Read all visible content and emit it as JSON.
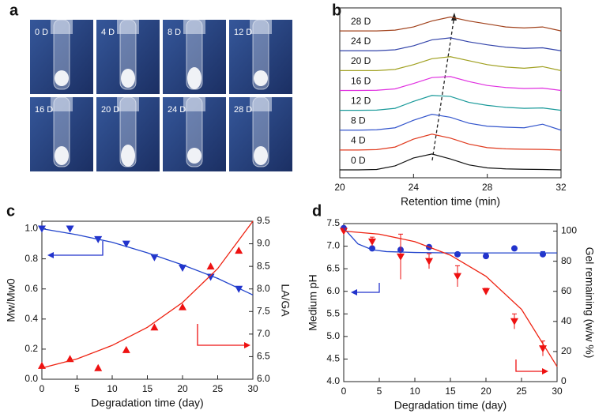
{
  "photos": {
    "label": "a",
    "tiles": [
      "0 D",
      "4 D",
      "8 D",
      "12 D",
      "16 D",
      "20 D",
      "24 D",
      "28 D"
    ]
  },
  "chart_data": [
    {
      "label": "b",
      "type": "line",
      "xlabel": "Retention time (min)",
      "xlim": [
        20,
        32
      ],
      "xticks": [
        20,
        24,
        28,
        32
      ],
      "x": [
        20,
        21,
        22,
        23,
        24,
        25,
        26,
        27,
        28,
        29,
        30,
        31,
        32
      ],
      "series": [
        {
          "name": "0 D",
          "color": "#111111",
          "values": [
            0,
            0,
            0.02,
            0.2,
            0.6,
            0.8,
            0.55,
            0.25,
            0.1,
            0.05,
            0.03,
            0.02,
            0
          ]
        },
        {
          "name": "4 D",
          "color": "#e03a1e",
          "values": [
            0,
            0,
            0.02,
            0.15,
            0.55,
            0.8,
            0.6,
            0.3,
            0.12,
            0.06,
            0.04,
            0.03,
            0
          ]
        },
        {
          "name": "8 D",
          "color": "#3355cc",
          "values": [
            0,
            0,
            0.02,
            0.12,
            0.5,
            0.8,
            0.65,
            0.35,
            0.2,
            0.15,
            0.12,
            0.3,
            0
          ]
        },
        {
          "name": "12 D",
          "color": "#1a9a9a",
          "values": [
            0,
            0,
            0.01,
            0.1,
            0.45,
            0.75,
            0.7,
            0.4,
            0.25,
            0.15,
            0.1,
            0.12,
            0
          ]
        },
        {
          "name": "16 D",
          "color": "#e030e0",
          "values": [
            0,
            0,
            0.01,
            0.08,
            0.35,
            0.65,
            0.7,
            0.45,
            0.25,
            0.15,
            0.1,
            0.12,
            0
          ]
        },
        {
          "name": "20 D",
          "color": "#a0a020",
          "values": [
            0,
            0,
            0,
            0.06,
            0.3,
            0.6,
            0.7,
            0.5,
            0.3,
            0.18,
            0.12,
            0.2,
            0
          ]
        },
        {
          "name": "24 D",
          "color": "#3344aa",
          "values": [
            0,
            0,
            0,
            0.05,
            0.25,
            0.55,
            0.65,
            0.45,
            0.3,
            0.18,
            0.12,
            0.15,
            0
          ]
        },
        {
          "name": "28 D",
          "color": "#a0401a",
          "values": [
            0,
            0,
            0,
            0.04,
            0.2,
            0.5,
            0.7,
            0.5,
            0.35,
            0.2,
            0.15,
            0.2,
            0
          ]
        }
      ]
    },
    {
      "label": "c",
      "type": "scatter",
      "xlabel": "Degradation time (day)",
      "ylabel": "Mw/Mw0",
      "y2label": "LA/GA",
      "xlim": [
        0,
        30
      ],
      "xticks": [
        0,
        5,
        10,
        15,
        20,
        25,
        30
      ],
      "ylim": [
        0,
        1.05
      ],
      "yticks": [
        {
          "value": 0,
          "label": "0.0"
        },
        0.2,
        0.4,
        0.6,
        0.8,
        {
          "value": 1,
          "label": "1.0"
        }
      ],
      "y2lim": [
        6,
        9.5
      ],
      "y2ticks": [
        {
          "value": 6,
          "label": "6.0"
        },
        6.5,
        {
          "value": 7,
          "label": "7.0"
        },
        7.5,
        {
          "value": 8,
          "label": "8.0"
        },
        8.5,
        {
          "value": 9,
          "label": "9.0"
        },
        9.5
      ],
      "series": [
        {
          "marker": "tri-down",
          "color": "#2233cc",
          "axis": "y",
          "x": [
            0,
            4,
            8,
            12,
            16,
            20,
            24,
            28
          ],
          "values": [
            1.0,
            1.0,
            0.93,
            0.9,
            0.81,
            0.74,
            0.68,
            0.6
          ]
        },
        {
          "marker": "tri-up",
          "color": "#ee1111",
          "axis": "y2",
          "x": [
            0,
            4,
            8,
            12,
            16,
            20,
            24,
            28
          ],
          "values": [
            6.3,
            6.45,
            6.25,
            6.65,
            7.15,
            7.6,
            8.5,
            8.85
          ]
        },
        {
          "marker": "line",
          "color": "#2244cc",
          "axis": "y",
          "x": [
            0,
            5,
            10,
            15,
            20,
            25,
            30
          ],
          "values": [
            1.0,
            0.96,
            0.91,
            0.84,
            0.76,
            0.67,
            0.56
          ]
        },
        {
          "marker": "line",
          "color": "#ee2211",
          "axis": "y2",
          "x": [
            0,
            5,
            10,
            15,
            20,
            25,
            30
          ],
          "values": [
            6.25,
            6.45,
            6.75,
            7.15,
            7.7,
            8.45,
            9.5
          ]
        }
      ]
    },
    {
      "label": "d",
      "type": "scatter",
      "xlabel": "Degradation time (day)",
      "ylabel": "Medium pH",
      "y2label": "Gel remaining (w/w %)",
      "xlim": [
        0,
        30
      ],
      "xticks": [
        0,
        5,
        10,
        15,
        20,
        25,
        30
      ],
      "ylim": [
        4,
        7.5
      ],
      "yticks": [
        {
          "value": 4,
          "label": "4.0"
        },
        4.5,
        {
          "value": 5,
          "label": "5.0"
        },
        5.5,
        {
          "value": 6,
          "label": "6.0"
        },
        6.5,
        {
          "value": 7,
          "label": "7.0"
        },
        7.5
      ],
      "y2lim": [
        0,
        105
      ],
      "y2ticks": [
        0,
        20,
        40,
        60,
        80,
        100
      ],
      "series": [
        {
          "marker": "circle",
          "color": "#2233cc",
          "axis": "y",
          "x": [
            0,
            4,
            8,
            12,
            16,
            20,
            24,
            28
          ],
          "values": [
            7.4,
            6.95,
            6.92,
            6.98,
            6.82,
            6.78,
            6.95,
            6.82
          ],
          "errors": [
            0.03,
            0.03,
            0.03,
            0.03,
            0.03,
            0.05,
            0.03,
            0.06
          ]
        },
        {
          "marker": "tri-down",
          "color": "#ee1111",
          "axis": "y2",
          "x": [
            0,
            4,
            8,
            12,
            16,
            20,
            24,
            28
          ],
          "values": [
            100,
            93,
            83,
            80,
            70,
            60,
            40,
            22
          ],
          "errors": [
            0,
            3,
            15,
            5,
            7,
            2,
            5,
            5
          ]
        },
        {
          "marker": "line",
          "color": "#2244cc",
          "axis": "y",
          "x": [
            0,
            2,
            4,
            6,
            10,
            15,
            20,
            30
          ],
          "values": [
            7.4,
            7.05,
            6.92,
            6.88,
            6.86,
            6.85,
            6.85,
            6.85
          ]
        },
        {
          "marker": "line",
          "color": "#ee2211",
          "axis": "y2",
          "x": [
            0,
            5,
            10,
            15,
            20,
            25,
            30
          ],
          "values": [
            100,
            98,
            93,
            84,
            70,
            48,
            10
          ]
        }
      ]
    }
  ]
}
